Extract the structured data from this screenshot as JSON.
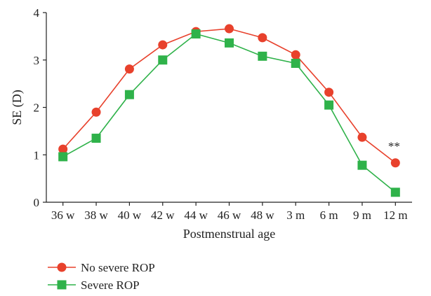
{
  "chart_data": {
    "type": "line",
    "title": "",
    "xlabel": "Postmenstrual age",
    "ylabel": "SE (D)",
    "categories": [
      "36 w",
      "38 w",
      "40 w",
      "42 w",
      "44 w",
      "46 w",
      "48 w",
      "3 m",
      "6 m",
      "9 m",
      "12 m"
    ],
    "ylim": [
      0,
      4
    ],
    "yticks": [
      "0",
      "1",
      "2",
      "3",
      "4"
    ],
    "grid": false,
    "legend_position": "bottom-left",
    "series": [
      {
        "name": "No severe ROP",
        "color": "#e8412c",
        "marker": "circle",
        "values": [
          1.12,
          1.9,
          2.81,
          3.32,
          3.6,
          3.66,
          3.47,
          3.11,
          2.32,
          1.37,
          0.83
        ]
      },
      {
        "name": "Severe ROP",
        "color": "#2fb24a",
        "marker": "square",
        "values": [
          0.96,
          1.35,
          2.27,
          3.0,
          3.55,
          3.36,
          3.08,
          2.93,
          2.05,
          0.78,
          0.21
        ]
      }
    ],
    "annotations": [
      {
        "text": "**",
        "category": "12 m",
        "y": 1.22
      }
    ]
  }
}
